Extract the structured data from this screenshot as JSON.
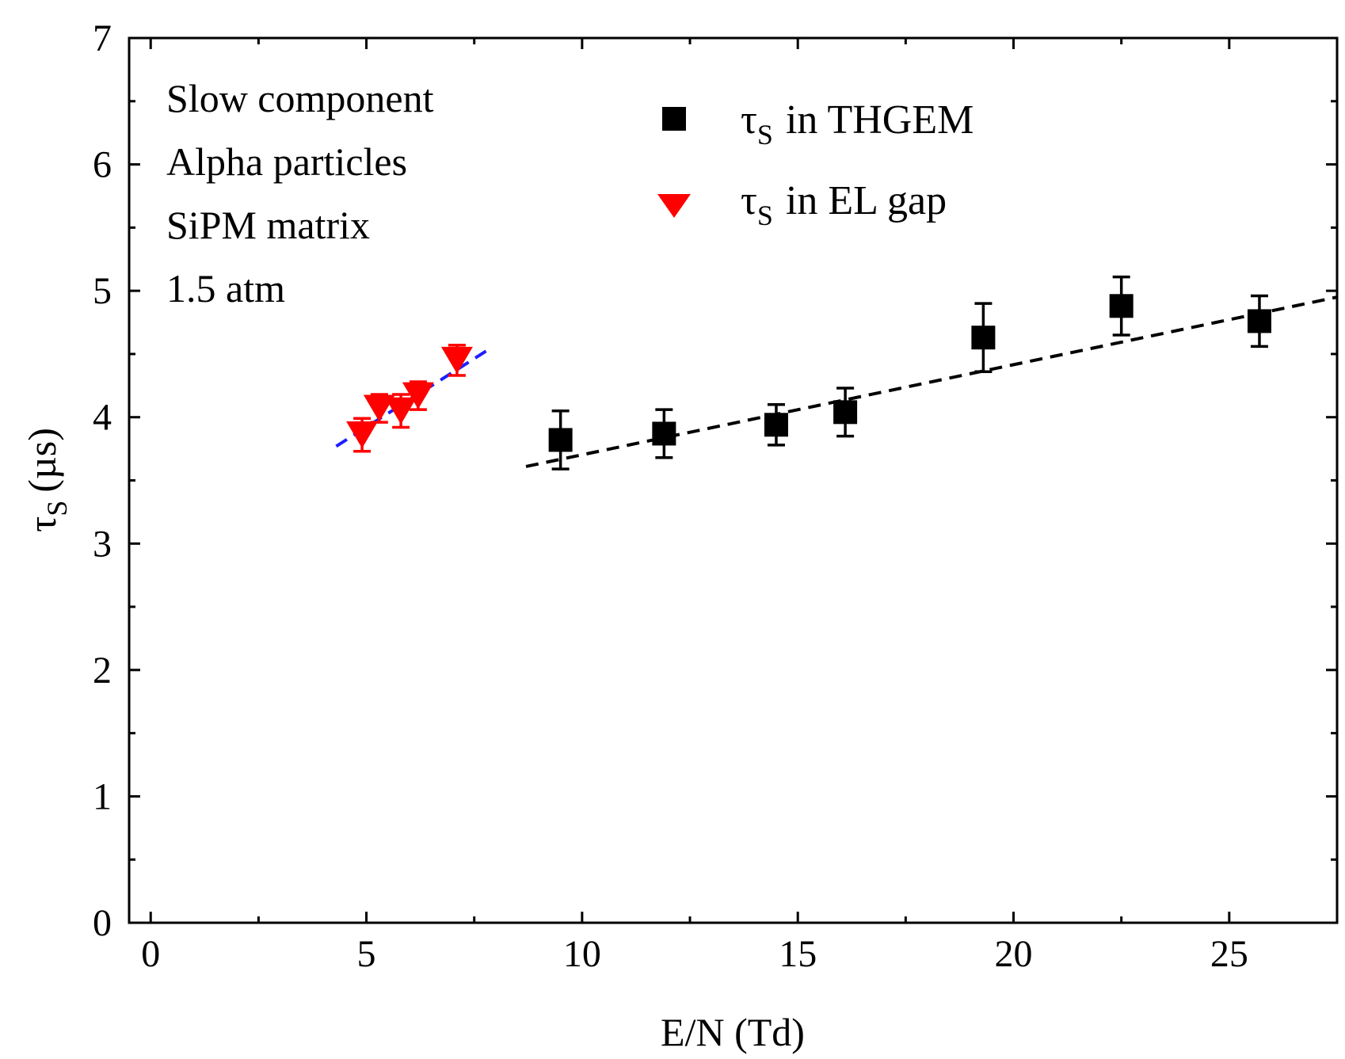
{
  "chart_data": {
    "type": "scatter",
    "xlabel": "E/N (Td)",
    "ylabel_symbol": "τ",
    "ylabel_subscript": "S",
    "ylabel_unit": "(µs)",
    "xlim": [
      -0.5,
      27.5
    ],
    "ylim": [
      0,
      7
    ],
    "xticks": [
      0,
      5,
      10,
      15,
      20,
      25
    ],
    "yticks": [
      0,
      1,
      2,
      3,
      4,
      5,
      6,
      7
    ],
    "annotations": [
      "Slow component",
      "Alpha particles",
      "SiPM matrix",
      "1.5 atm"
    ],
    "series": [
      {
        "name": "τS in THGEM",
        "legend_symbol": "τ",
        "legend_subscript": "S",
        "legend_rest": "in THGEM",
        "marker": "square",
        "color": "#000000",
        "x": [
          9.5,
          11.9,
          14.5,
          16.1,
          19.3,
          22.5,
          25.7
        ],
        "y": [
          3.82,
          3.87,
          3.94,
          4.04,
          4.63,
          4.88,
          4.76
        ],
        "err": [
          0.23,
          0.19,
          0.16,
          0.19,
          0.27,
          0.23,
          0.2
        ],
        "fit": {
          "x": [
            8.7,
            27.5
          ],
          "y": [
            3.61,
            4.95
          ],
          "color": "#000000"
        }
      },
      {
        "name": "τS in EL gap",
        "legend_symbol": "τ",
        "legend_subscript": "S",
        "legend_rest": "in EL gap",
        "marker": "triangle-down",
        "color": "#ff0000",
        "x": [
          4.9,
          5.3,
          5.8,
          6.2,
          7.1
        ],
        "y": [
          3.86,
          4.07,
          4.05,
          4.17,
          4.45
        ],
        "err": [
          0.13,
          0.11,
          0.13,
          0.11,
          0.12
        ],
        "fit": {
          "x": [
            4.3,
            7.9
          ],
          "y": [
            3.77,
            4.55
          ],
          "color": "#1f1fff"
        }
      }
    ]
  }
}
